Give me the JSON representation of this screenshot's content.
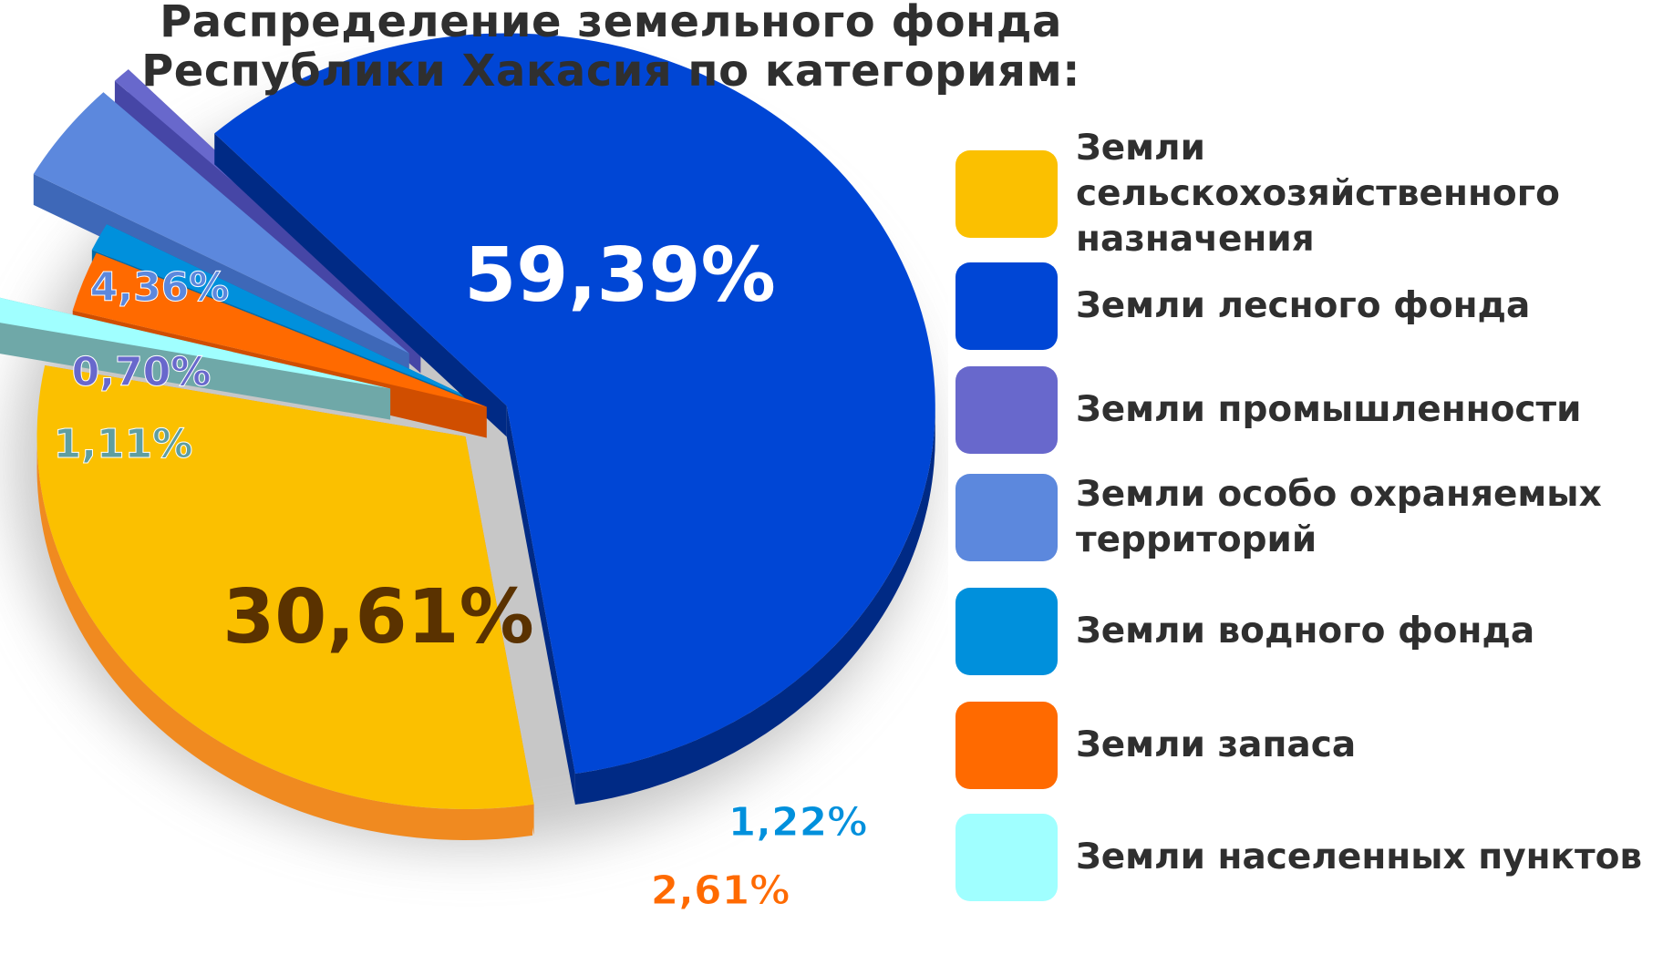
{
  "chart_data": {
    "type": "pie",
    "title": "Распределение земельного фонда Республики Хакасия по категориям:",
    "title_lines": [
      "Распределение земельного фонда",
      "Республики Хакасия по категориям:"
    ],
    "slices": [
      {
        "label": "Земли сельскохозяйственного назначения",
        "value": 30.61,
        "value_text": "30,61%",
        "color": "#FBC000",
        "side_color": "#F08A20",
        "label_color": "#5a3200"
      },
      {
        "label": "Земли лесного фонда",
        "value": 59.39,
        "value_text": "59,39%",
        "color": "#0046D5",
        "side_color": "#002A85",
        "label_color": "#ffffff"
      },
      {
        "label": "Земли промышленности",
        "value": 0.7,
        "value_text": "0,70%",
        "color": "#6868CC",
        "side_color": "#4646A6",
        "label_color": "#6868CC"
      },
      {
        "label": "Земли особо охраняемых территорий",
        "value": 4.36,
        "value_text": "4,36%",
        "color": "#5C88DD",
        "side_color": "#3E68B8",
        "label_color": "#5C88DD"
      },
      {
        "label": "Земли водного фонда",
        "value": 1.22,
        "value_text": "1,22%",
        "color": "#0090DC",
        "side_color": "#006AA6",
        "label_color": "#0090DC"
      },
      {
        "label": "Земли запаса",
        "value": 2.61,
        "value_text": "2,61%",
        "color": "#FF6A00",
        "side_color": "#D04E00",
        "label_color": "#FF6A00"
      },
      {
        "label": "Земли населенных пунктов",
        "value": 1.11,
        "value_text": "1,11%",
        "color": "#A0FFFF",
        "side_color": "#6FA8A8",
        "label_color": "#5F9EA0"
      }
    ]
  },
  "legend": [
    {
      "lines": [
        "Земли сельскохозяйственного",
        "назначения"
      ],
      "color": "#FBC000"
    },
    {
      "lines": [
        "Земли лесного фонда"
      ],
      "color": "#0046D5"
    },
    {
      "lines": [
        "Земли промышленности"
      ],
      "color": "#6868CC"
    },
    {
      "lines": [
        "Земли особо охраняемых",
        "территорий"
      ],
      "color": "#5C88DD"
    },
    {
      "lines": [
        "Земли водного фонда"
      ],
      "color": "#0090DC"
    },
    {
      "lines": [
        "Земли запаса"
      ],
      "color": "#FF6A00"
    },
    {
      "lines": [
        "Земли населенных пунктов"
      ],
      "color": "#A0FFFF"
    }
  ]
}
